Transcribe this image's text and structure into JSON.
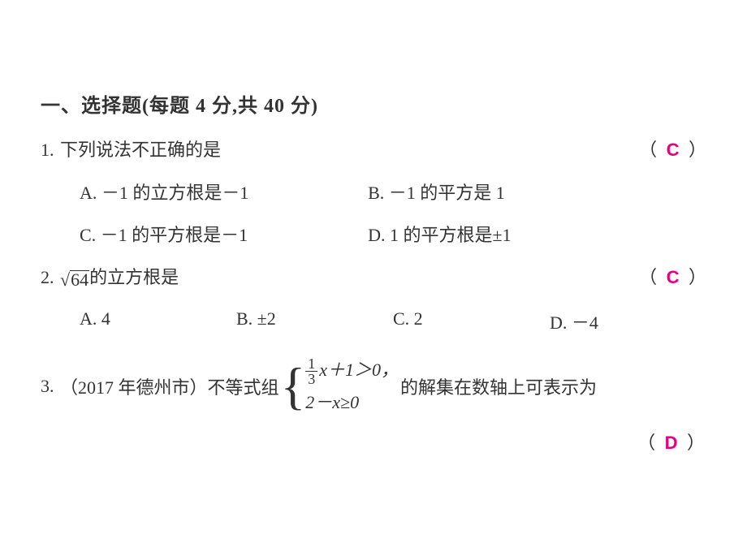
{
  "colors": {
    "text": "#333333",
    "accent": "#e6007e",
    "bg": "#ffffff"
  },
  "fonts": {
    "body_family": "SimSun",
    "body_size_pt": 16,
    "title_size_pt": 18,
    "title_weight": "bold"
  },
  "section_title": "一、选择题(每题 4 分,共 40 分)",
  "q1": {
    "num": "1.",
    "stem": "下列说法不正确的是",
    "paren_open": "（",
    "answer": "C",
    "paren_close": "）",
    "optA": "A. －1 的立方根是－1",
    "optB": "B. －1 的平方是 1",
    "optC": "C. －1 的平方根是－1",
    "optD": "D. 1 的平方根是±1"
  },
  "q2": {
    "num": "2.",
    "sqrt_num": "64",
    "stem_tail": "的立方根是",
    "paren_open": "（",
    "answer": "C",
    "paren_close": "）",
    "optA": "A. 4",
    "optB": "B. ±2",
    "optC": "C. 2",
    "optD": "D. －4"
  },
  "q3": {
    "num": "3.",
    "stem_pre": "（2017 年德州市）不等式组",
    "line1_frac_num": "1",
    "line1_frac_den": "3",
    "line1_tail": "x＋1＞0，",
    "line2": "2－x≥0",
    "stem_post": "的解集在数轴上可表示为",
    "paren_open": "（",
    "answer": "D",
    "paren_close": "）"
  }
}
